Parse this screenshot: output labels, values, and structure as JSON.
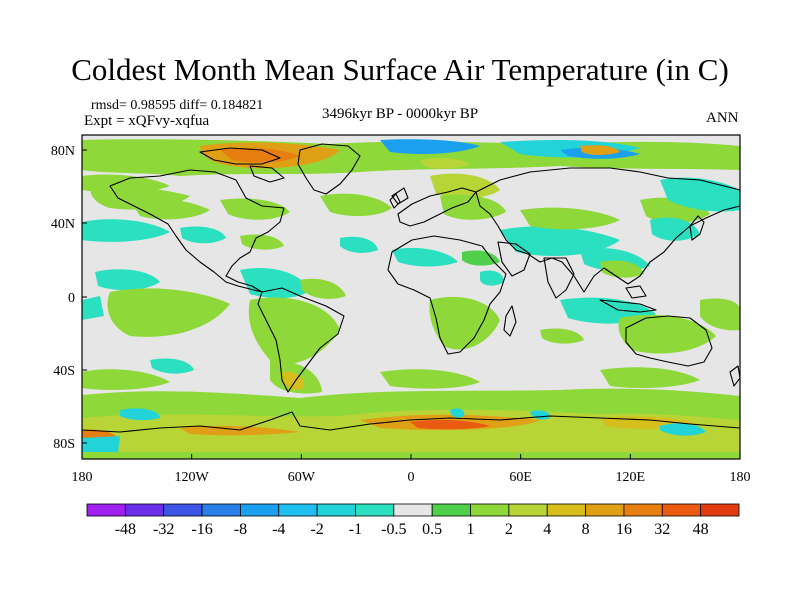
{
  "title": "Coldest Month Mean Surface Air Temperature (in C)",
  "stats": "rmsd= 0.98595 diff= 0.184821",
  "experiment": "Expt = xQFvy-xqfua",
  "period": "3496kyr BP - 0000kyr BP",
  "season": "ANN",
  "lon_ticks": [
    "180",
    "120W",
    "60W",
    "0",
    "60E",
    "120E",
    "180"
  ],
  "lat_ticks": [
    "80N",
    "40N",
    "0",
    "40S",
    "80S"
  ],
  "colorbar": {
    "labels": [
      "-48",
      "-32",
      "-16",
      "-8",
      "-4",
      "-2",
      "-1",
      "-0.5",
      "0.5",
      "1",
      "2",
      "4",
      "8",
      "16",
      "32",
      "48"
    ],
    "colors": [
      "#a020f0",
      "#6a2ee8",
      "#3c55e6",
      "#2a7fe8",
      "#1aa0ee",
      "#1ec0ef",
      "#22d3d8",
      "#2ae0c0",
      "#e6e6e6",
      "#4fd04a",
      "#8ed83a",
      "#b8d436",
      "#d6bf1c",
      "#e0a015",
      "#e77e10",
      "#ea5a10",
      "#e43c12"
    ]
  },
  "colors": {
    "land_outline": "#000000",
    "neutral": "#e6e6e6",
    "light_green": "#8ed83a",
    "yellow_green": "#b8d436",
    "green": "#4fd04a",
    "cyan": "#22d3d8",
    "teal": "#2ae0c0",
    "blue": "#1aa0ee",
    "orange": "#e0a015",
    "dark_orange": "#e77e10",
    "red": "#ea5a10",
    "gold": "#d6bf1c"
  }
}
